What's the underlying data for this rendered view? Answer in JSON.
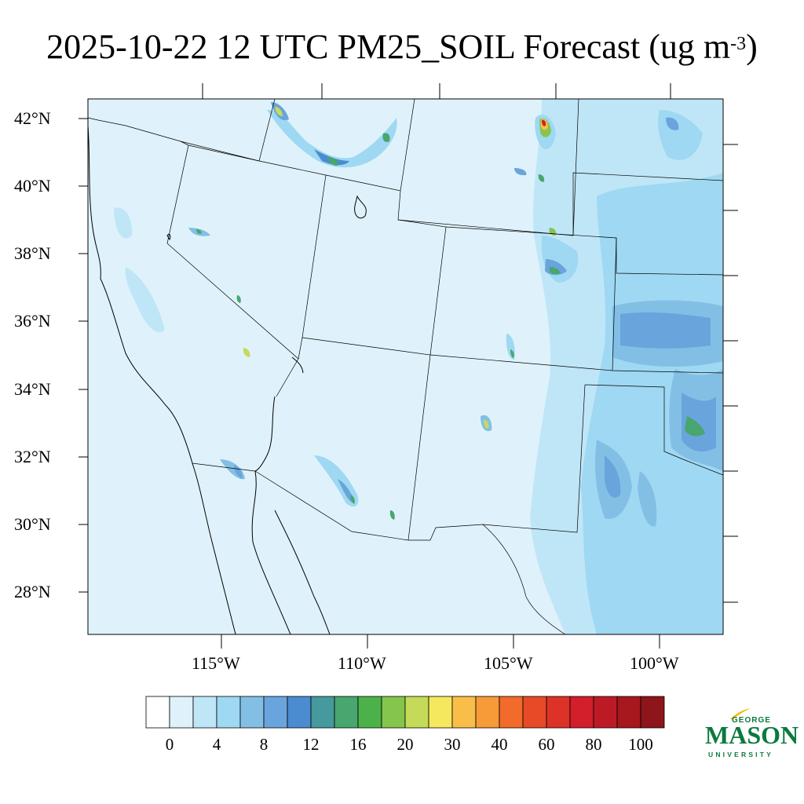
{
  "title": {
    "prefix": "2025-10-22 12 UTC PM25_SOIL Forecast (ug m",
    "superscript": "-3",
    "suffix": ")"
  },
  "map": {
    "variable": "PM25_SOIL",
    "valid_time": "2025-10-22 12 UTC",
    "units": "ug m-3",
    "latitude_labels": [
      "42°N",
      "40°N",
      "38°N",
      "36°N",
      "34°N",
      "32°N",
      "30°N",
      "28°N"
    ],
    "longitude_labels": [
      "115°W",
      "110°W",
      "105°W",
      "100°W"
    ],
    "background_color": "#dff2fb"
  },
  "colorbar": {
    "colors": [
      "#ffffff",
      "#dff2fb",
      "#bfe6f7",
      "#9fd8f2",
      "#83bfe5",
      "#6aa4dc",
      "#4a8ccf",
      "#46999d",
      "#48a66e",
      "#4bb249",
      "#86c54c",
      "#c6da5a",
      "#f6e85e",
      "#f9be4a",
      "#f79a38",
      "#f26b2a",
      "#e84a27",
      "#dc3227",
      "#d21f2b",
      "#bc1b26",
      "#a6171e",
      "#8e1519"
    ],
    "tick_labels": [
      "0",
      "4",
      "8",
      "12",
      "16",
      "20",
      "30",
      "40",
      "60",
      "80",
      "100"
    ]
  },
  "logo": {
    "line1": "GEORGE",
    "line2": "MASON",
    "line3": "UNIVERSITY",
    "color": "#0a7a3e",
    "accent": "#f2b705"
  }
}
